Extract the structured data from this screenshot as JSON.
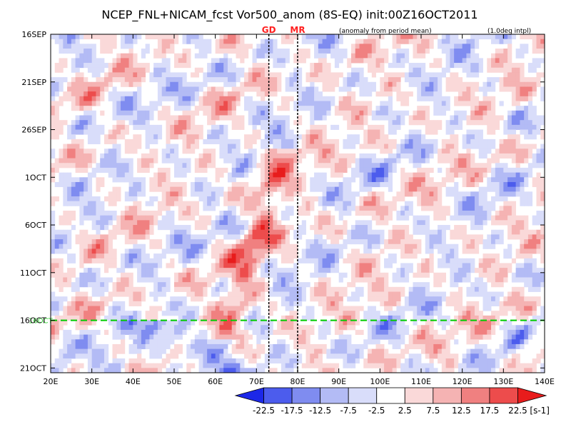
{
  "chart_data": {
    "type": "heatmap",
    "title": "NCEP_FNL+NICAM_fcst Vor500_anom (8S-EQ) init:00Z16OCT2011",
    "subtitle_left": "(anomaly from period mean)",
    "subtitle_right": "(1.0deg intpl)",
    "x_ticks": [
      "20E",
      "30E",
      "40E",
      "50E",
      "60E",
      "70E",
      "80E",
      "90E",
      "100E",
      "110E",
      "120E",
      "130E",
      "140E"
    ],
    "x_range_deg": [
      20,
      140
    ],
    "y_ticks": [
      "16SEP",
      "21SEP",
      "26SEP",
      "1OCT",
      "6OCT",
      "11OCT",
      "16OCT",
      "21OCT"
    ],
    "y_tick_days": [
      0,
      5,
      10,
      15,
      20,
      25,
      30,
      35
    ],
    "y_range_days": [
      0,
      35.5
    ],
    "markers": [
      {
        "label": "GD",
        "lon": 73,
        "color": "#ff2020"
      },
      {
        "label": "MR",
        "lon": 80,
        "color": "#ff2020"
      }
    ],
    "forecast_start": {
      "day": 30,
      "label": "16OCT",
      "color": "#00cc00"
    },
    "colorbar": {
      "labels": [
        "-22.5",
        "-17.5",
        "-12.5",
        "-7.5",
        "-2.5",
        "2.5",
        "7.5",
        "12.5",
        "17.5",
        "22.5"
      ],
      "unit": "[s-1]",
      "colors": [
        "#1c28e8",
        "#4c5ced",
        "#7f8cf0",
        "#b3bbf5",
        "#d9ddfa",
        "#ffffff",
        "#fad9d9",
        "#f5b3b3",
        "#f08080",
        "#ed4c4c",
        "#e81c1c"
      ]
    }
  }
}
